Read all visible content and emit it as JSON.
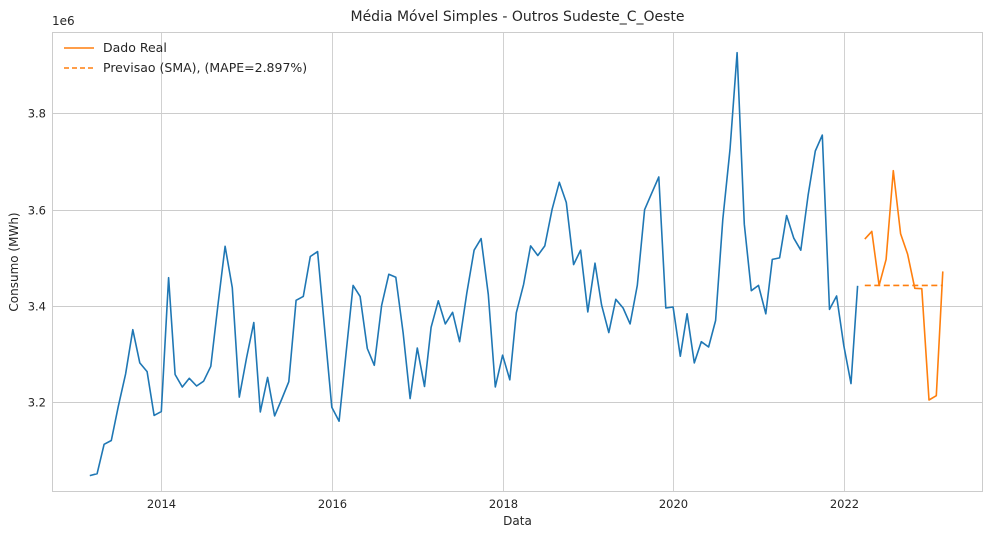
{
  "chart_data": {
    "type": "line",
    "title": "Média Móvel Simples - Outros Sudeste_C_Oeste",
    "xlabel": "Data",
    "ylabel": "Consumo (MWh)",
    "y_offset_label": "1e6",
    "y_scale": 1000000,
    "xlim": [
      "2012-09-20",
      "2023-08-20"
    ],
    "ylim": [
      3014000,
      3969000
    ],
    "x_ticks": [
      "2014-01-01",
      "2016-01-01",
      "2018-01-01",
      "2020-01-01",
      "2022-01-01"
    ],
    "x_tick_labels": [
      "2014",
      "2016",
      "2018",
      "2020",
      "2022"
    ],
    "y_ticks": [
      3200000,
      3400000,
      3600000,
      3800000
    ],
    "y_tick_labels": [
      "3.2",
      "3.4",
      "3.6",
      "3.8"
    ],
    "grid": true,
    "legend_position": "top-left",
    "colors": {
      "train": "#1f77b4",
      "real": "#ff7f0e",
      "forecast": "#ff7f0e"
    },
    "series": [
      {
        "id": "train",
        "x": [
          "2013-03-01",
          "2013-04-01",
          "2013-05-01",
          "2013-06-01",
          "2013-07-01",
          "2013-08-01",
          "2013-09-01",
          "2013-10-01",
          "2013-11-01",
          "2013-12-01",
          "2014-01-01",
          "2014-02-01",
          "2014-03-01",
          "2014-04-01",
          "2014-05-01",
          "2014-06-01",
          "2014-07-01",
          "2014-08-01",
          "2014-09-01",
          "2014-10-01",
          "2014-11-01",
          "2014-12-01",
          "2015-01-01",
          "2015-02-01",
          "2015-03-01",
          "2015-04-01",
          "2015-05-01",
          "2015-06-01",
          "2015-07-01",
          "2015-08-01",
          "2015-09-01",
          "2015-10-01",
          "2015-11-01",
          "2015-12-01",
          "2016-01-01",
          "2016-02-01",
          "2016-03-01",
          "2016-04-01",
          "2016-05-01",
          "2016-06-01",
          "2016-07-01",
          "2016-08-01",
          "2016-09-01",
          "2016-10-01",
          "2016-11-01",
          "2016-12-01",
          "2017-01-01",
          "2017-02-01",
          "2017-03-01",
          "2017-04-01",
          "2017-05-01",
          "2017-06-01",
          "2017-07-01",
          "2017-08-01",
          "2017-09-01",
          "2017-10-01",
          "2017-11-01",
          "2017-12-01",
          "2018-01-01",
          "2018-02-01",
          "2018-03-01",
          "2018-04-01",
          "2018-05-01",
          "2018-06-01",
          "2018-07-01",
          "2018-08-01",
          "2018-09-01",
          "2018-10-01",
          "2018-11-01",
          "2018-12-01",
          "2019-01-01",
          "2019-02-01",
          "2019-03-01",
          "2019-04-01",
          "2019-05-01",
          "2019-06-01",
          "2019-07-01",
          "2019-08-01",
          "2019-09-01",
          "2019-10-01",
          "2019-11-01",
          "2019-12-01",
          "2020-01-01",
          "2020-02-01",
          "2020-03-01",
          "2020-04-01",
          "2020-05-01",
          "2020-06-01",
          "2020-07-01",
          "2020-08-01",
          "2020-09-01",
          "2020-10-01",
          "2020-11-01",
          "2020-12-01",
          "2021-01-01",
          "2021-02-01",
          "2021-03-01",
          "2021-04-01",
          "2021-05-01",
          "2021-06-01",
          "2021-07-01",
          "2021-08-01",
          "2021-09-01",
          "2021-10-01",
          "2021-11-01",
          "2021-12-01",
          "2022-01-01",
          "2022-02-01",
          "2022-03-01"
        ],
        "y": [
          3048000,
          3052000,
          3113000,
          3121000,
          3192000,
          3259000,
          3351000,
          3282000,
          3264000,
          3173000,
          3181000,
          3459000,
          3258000,
          3232000,
          3250000,
          3234000,
          3244000,
          3275000,
          3405000,
          3524000,
          3438000,
          3211000,
          3293000,
          3366000,
          3180000,
          3252000,
          3172000,
          3207000,
          3243000,
          3412000,
          3420000,
          3503000,
          3513000,
          3353000,
          3190000,
          3161000,
          3297000,
          3443000,
          3420000,
          3312000,
          3277000,
          3401000,
          3466000,
          3460000,
          3345000,
          3208000,
          3313000,
          3233000,
          3356000,
          3411000,
          3363000,
          3387000,
          3326000,
          3427000,
          3516000,
          3540000,
          3424000,
          3232000,
          3298000,
          3247000,
          3386000,
          3445000,
          3525000,
          3505000,
          3525000,
          3601000,
          3657000,
          3615000,
          3486000,
          3516000,
          3388000,
          3489000,
          3402000,
          3345000,
          3414000,
          3396000,
          3363000,
          3443000,
          3600000,
          3634000,
          3668000,
          3396000,
          3398000,
          3296000,
          3384000,
          3282000,
          3326000,
          3315000,
          3370000,
          3580000,
          3725000,
          3926000,
          3570000,
          3432000,
          3443000,
          3384000,
          3497000,
          3500000,
          3588000,
          3541000,
          3516000,
          3630000,
          3722000,
          3755000,
          3393000,
          3421000,
          3318000,
          3239000,
          3442000
        ]
      },
      {
        "id": "real",
        "name": "Dado Real",
        "x": [
          "2022-04-01",
          "2022-05-01",
          "2022-06-01",
          "2022-07-01",
          "2022-08-01",
          "2022-09-01",
          "2022-10-01",
          "2022-11-01",
          "2022-12-01",
          "2023-01-01",
          "2023-02-01",
          "2023-03-01"
        ],
        "y": [
          3539000,
          3555000,
          3443000,
          3497000,
          3681000,
          3550000,
          3508000,
          3437000,
          3436000,
          3205000,
          3214000,
          3472000
        ]
      },
      {
        "id": "forecast",
        "name": "Previsao (SMA), (MAPE=2.897%)",
        "style": "dashed",
        "x": [
          "2022-04-01",
          "2022-05-01",
          "2022-06-01",
          "2022-07-01",
          "2022-08-01",
          "2022-09-01",
          "2022-10-01",
          "2022-11-01",
          "2022-12-01",
          "2023-01-01",
          "2023-02-01",
          "2023-03-01"
        ],
        "y": [
          3443000,
          3443000,
          3443000,
          3443000,
          3443000,
          3443000,
          3443000,
          3443000,
          3443000,
          3443000,
          3443000,
          3443000
        ]
      }
    ]
  }
}
